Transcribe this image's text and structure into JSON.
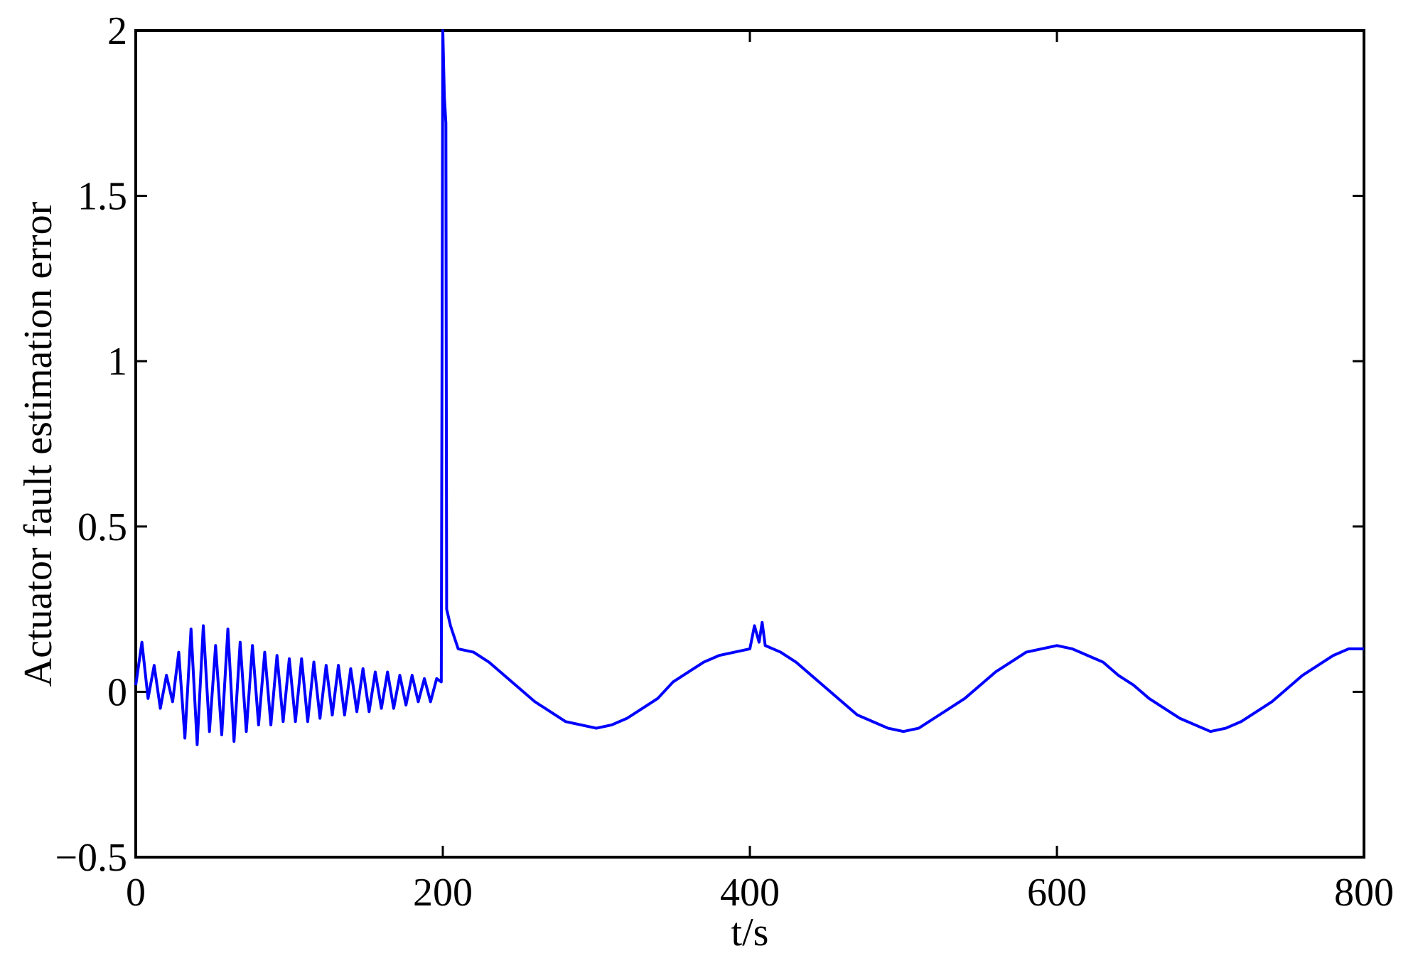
{
  "chart_data": {
    "type": "line",
    "xlabel": "t/s",
    "ylabel": "Actuator fault estimation error",
    "xlim": [
      0,
      800
    ],
    "ylim": [
      -0.5,
      2
    ],
    "xticks": [
      0,
      200,
      400,
      600,
      800
    ],
    "yticks": [
      {
        "value": -0.5,
        "label": "−0.5"
      },
      0,
      0.5,
      1,
      1.5,
      2
    ],
    "series": [
      {
        "color": "#0000ff",
        "x": [
          0,
          4,
          8,
          12,
          16,
          20,
          24,
          28,
          32,
          36,
          40,
          44,
          48,
          52,
          56,
          60,
          64,
          68,
          72,
          76,
          80,
          84,
          88,
          92,
          96,
          100,
          104,
          108,
          112,
          116,
          120,
          124,
          128,
          132,
          136,
          140,
          144,
          148,
          152,
          156,
          160,
          164,
          168,
          172,
          176,
          180,
          184,
          188,
          192,
          196,
          199,
          200,
          201,
          202,
          202.5,
          205,
          210,
          220,
          230,
          240,
          250,
          260,
          270,
          280,
          290,
          300,
          310,
          320,
          330,
          340,
          350,
          360,
          370,
          380,
          390,
          400,
          403,
          406,
          408,
          410,
          420,
          430,
          440,
          450,
          460,
          470,
          480,
          490,
          500,
          510,
          520,
          530,
          540,
          550,
          560,
          570,
          580,
          590,
          600,
          610,
          620,
          630,
          640,
          650,
          660,
          670,
          680,
          690,
          700,
          710,
          720,
          730,
          740,
          750,
          760,
          770,
          780,
          790,
          800
        ],
        "values": [
          0.02,
          0.15,
          -0.02,
          0.08,
          -0.05,
          0.05,
          -0.03,
          0.12,
          -0.14,
          0.19,
          -0.16,
          0.2,
          -0.12,
          0.14,
          -0.13,
          0.19,
          -0.15,
          0.15,
          -0.12,
          0.14,
          -0.1,
          0.12,
          -0.1,
          0.11,
          -0.09,
          0.1,
          -0.09,
          0.1,
          -0.09,
          0.09,
          -0.08,
          0.08,
          -0.07,
          0.08,
          -0.07,
          0.07,
          -0.06,
          0.07,
          -0.06,
          0.06,
          -0.05,
          0.06,
          -0.05,
          0.05,
          -0.04,
          0.05,
          -0.03,
          0.04,
          -0.03,
          0.04,
          0.03,
          2.0,
          1.8,
          1.72,
          0.25,
          0.2,
          0.13,
          0.12,
          0.09,
          0.05,
          0.01,
          -0.03,
          -0.06,
          -0.09,
          -0.1,
          -0.11,
          -0.1,
          -0.08,
          -0.05,
          -0.02,
          0.03,
          0.06,
          0.09,
          0.11,
          0.12,
          0.13,
          0.2,
          0.15,
          0.21,
          0.14,
          0.12,
          0.09,
          0.05,
          0.01,
          -0.03,
          -0.07,
          -0.09,
          -0.11,
          -0.12,
          -0.11,
          -0.08,
          -0.05,
          -0.02,
          0.02,
          0.06,
          0.09,
          0.12,
          0.13,
          0.14,
          0.13,
          0.11,
          0.09,
          0.05,
          0.02,
          -0.02,
          -0.05,
          -0.08,
          -0.1,
          -0.12,
          -0.11,
          -0.09,
          -0.06,
          -0.03,
          0.01,
          0.05,
          0.08,
          0.11,
          0.13,
          0.13
        ]
      }
    ]
  }
}
